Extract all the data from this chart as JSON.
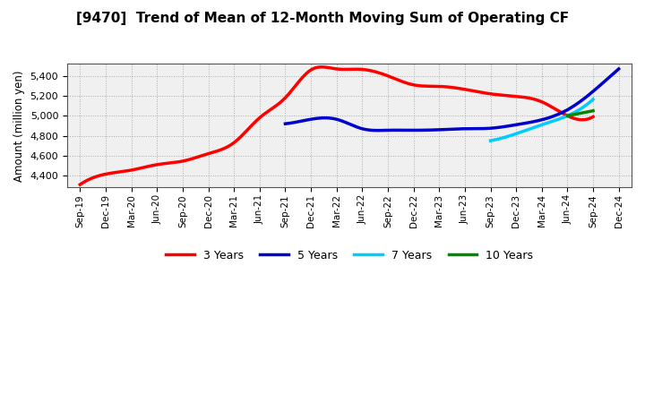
{
  "title": "[9470]  Trend of Mean of 12-Month Moving Sum of Operating CF",
  "ylabel": "Amount (million yen)",
  "background_color": "#ffffff",
  "plot_bg_color": "#f0f0f0",
  "grid_color": "#aaaaaa",
  "ylim": [
    4280,
    5520
  ],
  "yticks": [
    4400,
    4600,
    4800,
    5000,
    5200,
    5400
  ],
  "x_labels": [
    "Sep-19",
    "Dec-19",
    "Mar-20",
    "Jun-20",
    "Sep-20",
    "Dec-20",
    "Mar-21",
    "Jun-21",
    "Sep-21",
    "Dec-21",
    "Mar-22",
    "Jun-22",
    "Sep-22",
    "Dec-22",
    "Mar-23",
    "Jun-23",
    "Sep-23",
    "Dec-23",
    "Mar-24",
    "Jun-24",
    "Sep-24",
    "Dec-24"
  ],
  "series_3y": {
    "color": "#ff0000",
    "linewidth": 2.5,
    "x": [
      0,
      1,
      2,
      3,
      4,
      5,
      6,
      7,
      8,
      9,
      10,
      11,
      12,
      13,
      14,
      15,
      16,
      17,
      18,
      19,
      20
    ],
    "y": [
      4310,
      4415,
      4455,
      4510,
      4545,
      4620,
      4730,
      4980,
      5180,
      5460,
      5470,
      5465,
      5400,
      5310,
      5295,
      5265,
      5220,
      5195,
      5140,
      5000,
      4990
    ]
  },
  "series_5y": {
    "color": "#0000cc",
    "linewidth": 2.5,
    "x": [
      8,
      9,
      10,
      11,
      12,
      13,
      14,
      15,
      16,
      17,
      18,
      19,
      20,
      21
    ],
    "y": [
      4920,
      4965,
      4965,
      4870,
      4855,
      4855,
      4860,
      4870,
      4875,
      4910,
      4960,
      5060,
      5245,
      5470
    ]
  },
  "series_7y": {
    "color": "#00ccff",
    "linewidth": 2.5,
    "x": [
      16,
      17,
      18,
      19,
      20
    ],
    "y": [
      4750,
      4820,
      4910,
      5000,
      5165
    ]
  },
  "series_10y": {
    "color": "#008800",
    "linewidth": 2.5,
    "x": [
      19,
      20
    ],
    "y": [
      5000,
      5050
    ]
  },
  "legend_labels": [
    "3 Years",
    "5 Years",
    "7 Years",
    "10 Years"
  ],
  "legend_colors": [
    "#ff0000",
    "#0000cc",
    "#00ccff",
    "#008800"
  ]
}
